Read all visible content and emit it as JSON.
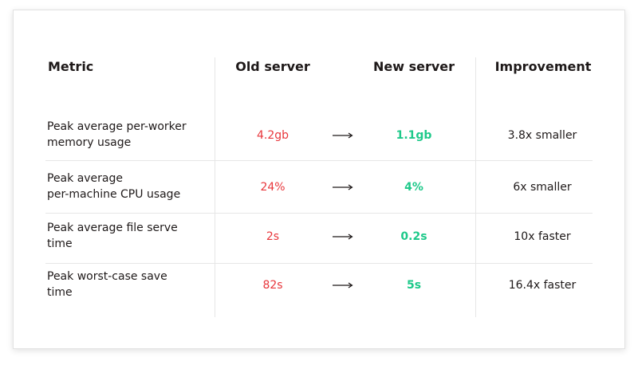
{
  "table": {
    "headers": [
      "Metric",
      "Old server",
      "New server",
      "Improvement"
    ],
    "rows": [
      {
        "metric": [
          "Peak average per-worker",
          "memory usage"
        ],
        "old": "4.2gb",
        "new": "1.1gb",
        "improvement": "3.8x smaller"
      },
      {
        "metric": [
          "Peak average",
          "per-machine CPU usage"
        ],
        "old": "24%",
        "new": "4%",
        "improvement": "6x smaller"
      },
      {
        "metric": [
          "Peak average file serve",
          "time"
        ],
        "old": "2s",
        "new": "0.2s",
        "improvement": "10x faster"
      },
      {
        "metric": [
          "Peak worst-case save",
          "time"
        ],
        "old": "82s",
        "new": "5s",
        "improvement": "16.4x faster"
      }
    ]
  }
}
